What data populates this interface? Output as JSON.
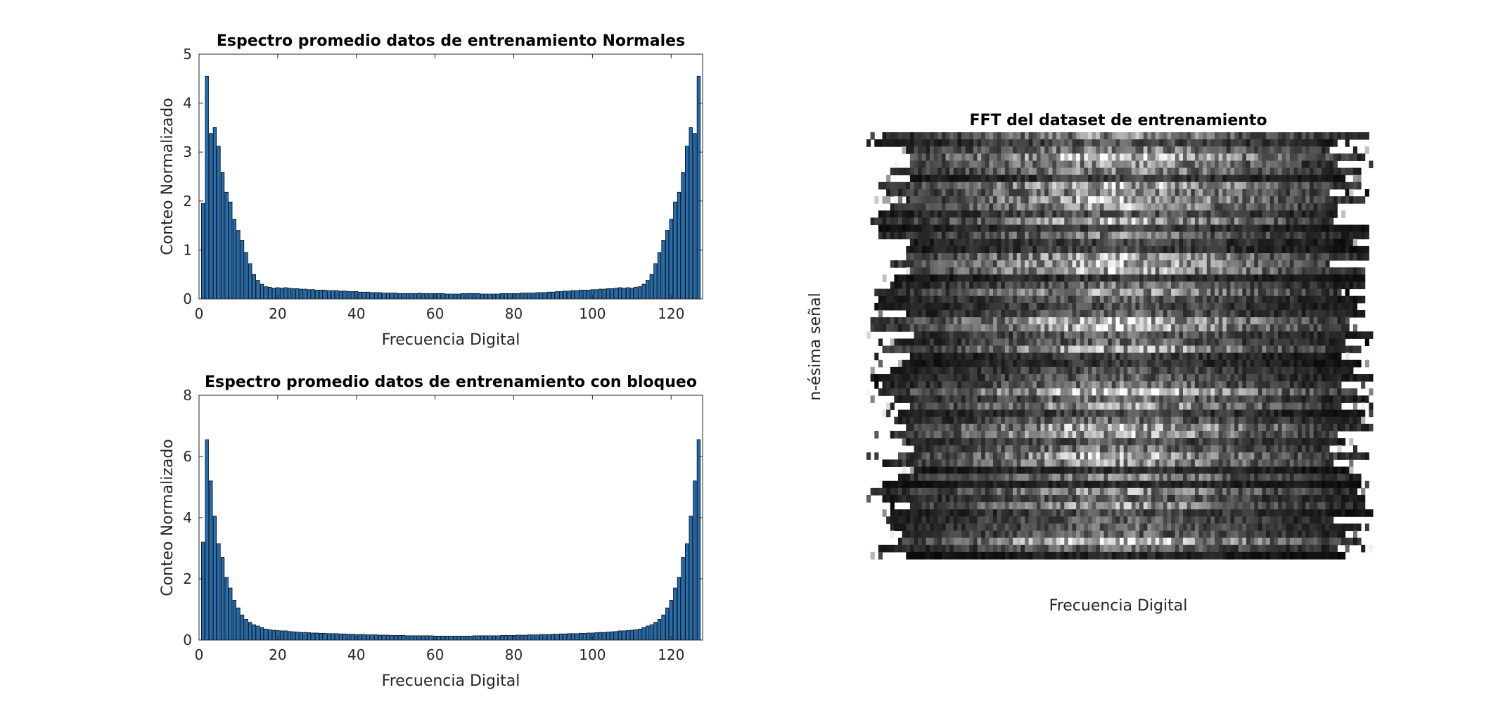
{
  "chart_data": [
    {
      "type": "bar",
      "title": "Espectro promedio datos de entrenamiento Normales",
      "xlabel": "Frecuencia Digital",
      "ylabel": "Conteo Normalizado",
      "xlim": [
        0,
        128
      ],
      "ylim": [
        0,
        5
      ],
      "xticks": [
        0,
        20,
        40,
        60,
        80,
        100,
        120
      ],
      "yticks": [
        0,
        1,
        2,
        3,
        4,
        5
      ],
      "bar_color": "#1f6fb8",
      "x": [
        1,
        2,
        3,
        4,
        5,
        6,
        7,
        8,
        9,
        10,
        11,
        12,
        13,
        14,
        15,
        16,
        17,
        18,
        19,
        20,
        21,
        22,
        23,
        24,
        25,
        26,
        27,
        28,
        29,
        30,
        31,
        32,
        33,
        34,
        35,
        36,
        37,
        38,
        39,
        40,
        41,
        42,
        43,
        44,
        45,
        46,
        47,
        48,
        49,
        50,
        51,
        52,
        53,
        54,
        55,
        56,
        57,
        58,
        59,
        60,
        61,
        62,
        63,
        64,
        65,
        66,
        67,
        68,
        69,
        70,
        71,
        72,
        73,
        74,
        75,
        76,
        77,
        78,
        79,
        80,
        81,
        82,
        83,
        84,
        85,
        86,
        87,
        88,
        89,
        90,
        91,
        92,
        93,
        94,
        95,
        96,
        97,
        98,
        99,
        100,
        101,
        102,
        103,
        104,
        105,
        106,
        107,
        108,
        109,
        110,
        111,
        112,
        113,
        114,
        115,
        116,
        117,
        118,
        119,
        120,
        121,
        122,
        123,
        124,
        125,
        126,
        127
      ],
      "values": [
        1.95,
        4.55,
        3.38,
        3.5,
        3.12,
        2.58,
        2.18,
        1.98,
        1.63,
        1.4,
        1.2,
        0.95,
        0.72,
        0.5,
        0.38,
        0.3,
        0.25,
        0.24,
        0.22,
        0.23,
        0.22,
        0.23,
        0.22,
        0.21,
        0.21,
        0.2,
        0.2,
        0.19,
        0.19,
        0.18,
        0.18,
        0.18,
        0.17,
        0.17,
        0.17,
        0.16,
        0.16,
        0.15,
        0.15,
        0.15,
        0.14,
        0.14,
        0.14,
        0.13,
        0.13,
        0.13,
        0.12,
        0.12,
        0.12,
        0.12,
        0.11,
        0.11,
        0.11,
        0.11,
        0.11,
        0.12,
        0.11,
        0.11,
        0.11,
        0.11,
        0.11,
        0.11,
        0.1,
        0.1,
        0.1,
        0.1,
        0.11,
        0.11,
        0.11,
        0.11,
        0.11,
        0.1,
        0.1,
        0.1,
        0.1,
        0.1,
        0.11,
        0.11,
        0.11,
        0.11,
        0.11,
        0.12,
        0.12,
        0.12,
        0.12,
        0.13,
        0.13,
        0.13,
        0.14,
        0.14,
        0.15,
        0.15,
        0.16,
        0.16,
        0.17,
        0.17,
        0.18,
        0.18,
        0.18,
        0.19,
        0.19,
        0.2,
        0.2,
        0.21,
        0.21,
        0.22,
        0.23,
        0.22,
        0.23,
        0.22,
        0.24,
        0.25,
        0.3,
        0.38,
        0.5,
        0.72,
        0.95,
        1.2,
        1.4,
        1.63,
        1.98,
        2.18,
        2.58,
        3.12,
        3.5,
        3.38,
        4.55
      ]
    },
    {
      "type": "bar",
      "title": "Espectro promedio datos de entrenamiento con bloqueo",
      "xlabel": "Frecuencia Digital",
      "ylabel": "Conteo Normalizado",
      "xlim": [
        0,
        128
      ],
      "ylim": [
        0,
        8
      ],
      "xticks": [
        0,
        20,
        40,
        60,
        80,
        100,
        120
      ],
      "yticks": [
        0,
        2,
        4,
        6,
        8
      ],
      "bar_color": "#1f6fb8",
      "x": [
        1,
        2,
        3,
        4,
        5,
        6,
        7,
        8,
        9,
        10,
        11,
        12,
        13,
        14,
        15,
        16,
        17,
        18,
        19,
        20,
        21,
        22,
        23,
        24,
        25,
        26,
        27,
        28,
        29,
        30,
        31,
        32,
        33,
        34,
        35,
        36,
        37,
        38,
        39,
        40,
        41,
        42,
        43,
        44,
        45,
        46,
        47,
        48,
        49,
        50,
        51,
        52,
        53,
        54,
        55,
        56,
        57,
        58,
        59,
        60,
        61,
        62,
        63,
        64,
        65,
        66,
        67,
        68,
        69,
        70,
        71,
        72,
        73,
        74,
        75,
        76,
        77,
        78,
        79,
        80,
        81,
        82,
        83,
        84,
        85,
        86,
        87,
        88,
        89,
        90,
        91,
        92,
        93,
        94,
        95,
        96,
        97,
        98,
        99,
        100,
        101,
        102,
        103,
        104,
        105,
        106,
        107,
        108,
        109,
        110,
        111,
        112,
        113,
        114,
        115,
        116,
        117,
        118,
        119,
        120,
        121,
        122,
        123,
        124,
        125,
        126,
        127
      ],
      "values": [
        3.2,
        6.55,
        5.2,
        4.05,
        3.15,
        2.7,
        2.05,
        1.7,
        1.3,
        1.05,
        0.82,
        0.68,
        0.58,
        0.5,
        0.46,
        0.41,
        0.36,
        0.34,
        0.32,
        0.31,
        0.3,
        0.3,
        0.28,
        0.27,
        0.26,
        0.25,
        0.25,
        0.24,
        0.23,
        0.23,
        0.22,
        0.22,
        0.21,
        0.21,
        0.21,
        0.2,
        0.2,
        0.19,
        0.19,
        0.18,
        0.18,
        0.18,
        0.17,
        0.17,
        0.17,
        0.16,
        0.16,
        0.16,
        0.15,
        0.15,
        0.15,
        0.15,
        0.14,
        0.14,
        0.14,
        0.14,
        0.14,
        0.14,
        0.14,
        0.13,
        0.13,
        0.13,
        0.13,
        0.13,
        0.13,
        0.13,
        0.13,
        0.13,
        0.13,
        0.14,
        0.14,
        0.14,
        0.14,
        0.14,
        0.14,
        0.14,
        0.15,
        0.15,
        0.15,
        0.15,
        0.16,
        0.16,
        0.16,
        0.17,
        0.17,
        0.17,
        0.18,
        0.18,
        0.18,
        0.19,
        0.19,
        0.2,
        0.2,
        0.21,
        0.21,
        0.21,
        0.22,
        0.22,
        0.23,
        0.23,
        0.24,
        0.25,
        0.25,
        0.26,
        0.27,
        0.28,
        0.3,
        0.3,
        0.31,
        0.32,
        0.34,
        0.36,
        0.41,
        0.46,
        0.5,
        0.58,
        0.68,
        0.82,
        1.05,
        1.3,
        1.7,
        2.05,
        2.7,
        3.15,
        4.05,
        5.2,
        6.55
      ]
    },
    {
      "type": "heatmap",
      "title": "FFT del dataset de entrenamiento",
      "xlabel": "Frecuencia Digital",
      "ylabel": "n-ésima señal",
      "colormap": "gray",
      "rows": 60,
      "columns": 128,
      "axes_visible": false
    }
  ]
}
